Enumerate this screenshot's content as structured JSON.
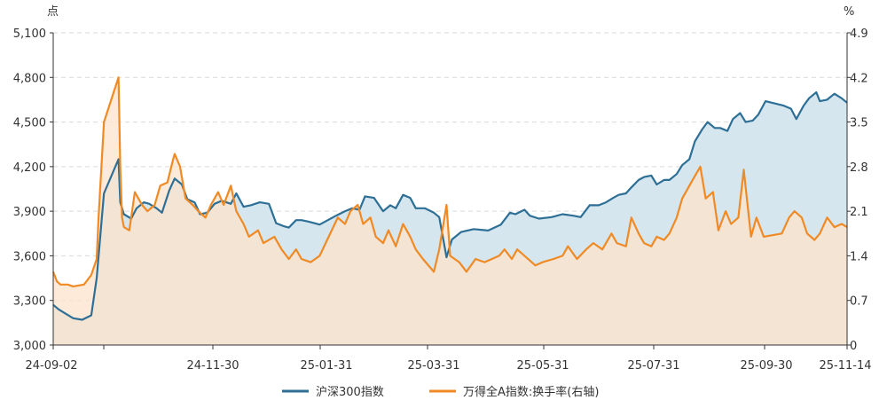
{
  "chart_data": {
    "type": "line",
    "left_axis": {
      "unit": "点",
      "ylim": [
        3000,
        5100
      ],
      "ticks": [
        "3,000",
        "3,300",
        "3,600",
        "3,900",
        "4,200",
        "4,500",
        "4,800",
        "5,100"
      ]
    },
    "right_axis": {
      "unit": "%",
      "ylim": [
        0,
        4.9
      ],
      "ticks": [
        "0",
        "0.7",
        "1.4",
        "2.1",
        "2.8",
        "3.5",
        "4.2",
        "4.9"
      ]
    },
    "x_axis": {
      "range": [
        "2024-09-02",
        "2025-11-14"
      ],
      "tick_labels": [
        "24-09-02",
        "24-11-30",
        "25-01-31",
        "25-03-31",
        "25-05-31",
        "25-07-31",
        "25-09-30",
        "25-11-14"
      ]
    },
    "grid": true,
    "legend_position": "bottom",
    "series": [
      {
        "name": "沪深300指数",
        "axis": "left",
        "color": "#2e6f96",
        "fill": "#d6e6ef",
        "points": [
          [
            "2024-09-02",
            3270
          ],
          [
            "2024-09-05",
            3240
          ],
          [
            "2024-09-09",
            3210
          ],
          [
            "2024-09-13",
            3180
          ],
          [
            "2024-09-18",
            3170
          ],
          [
            "2024-09-23",
            3200
          ],
          [
            "2024-09-26",
            3450
          ],
          [
            "2024-09-30",
            4020
          ],
          [
            "2024-10-08",
            4250
          ],
          [
            "2024-10-09",
            3960
          ],
          [
            "2024-10-11",
            3880
          ],
          [
            "2024-10-15",
            3850
          ],
          [
            "2024-10-18",
            3920
          ],
          [
            "2024-10-22",
            3960
          ],
          [
            "2024-10-25",
            3950
          ],
          [
            "2024-10-29",
            3920
          ],
          [
            "2024-11-01",
            3890
          ],
          [
            "2024-11-05",
            4040
          ],
          [
            "2024-11-08",
            4120
          ],
          [
            "2024-11-12",
            4080
          ],
          [
            "2024-11-15",
            3980
          ],
          [
            "2024-11-19",
            3960
          ],
          [
            "2024-11-22",
            3880
          ],
          [
            "2024-11-26",
            3890
          ],
          [
            "2024-11-30",
            3950
          ],
          [
            "2024-12-04",
            3970
          ],
          [
            "2024-12-09",
            3950
          ],
          [
            "2024-12-12",
            4020
          ],
          [
            "2024-12-16",
            3930
          ],
          [
            "2024-12-20",
            3940
          ],
          [
            "2024-12-25",
            3960
          ],
          [
            "2024-12-30",
            3950
          ],
          [
            "2025-01-03",
            3820
          ],
          [
            "2025-01-07",
            3800
          ],
          [
            "2025-01-10",
            3790
          ],
          [
            "2025-01-14",
            3840
          ],
          [
            "2025-01-17",
            3840
          ],
          [
            "2025-01-21",
            3830
          ],
          [
            "2025-01-27",
            3810
          ],
          [
            "2025-02-05",
            3870
          ],
          [
            "2025-02-10",
            3900
          ],
          [
            "2025-02-14",
            3920
          ],
          [
            "2025-02-18",
            3910
          ],
          [
            "2025-02-21",
            4000
          ],
          [
            "2025-02-26",
            3990
          ],
          [
            "2025-03-03",
            3900
          ],
          [
            "2025-03-07",
            3940
          ],
          [
            "2025-03-10",
            3920
          ],
          [
            "2025-03-14",
            4010
          ],
          [
            "2025-03-18",
            3990
          ],
          [
            "2025-03-21",
            3920
          ],
          [
            "2025-03-26",
            3920
          ],
          [
            "2025-03-31",
            3890
          ],
          [
            "2025-04-03",
            3860
          ],
          [
            "2025-04-07",
            3590
          ],
          [
            "2025-04-10",
            3710
          ],
          [
            "2025-04-15",
            3760
          ],
          [
            "2025-04-22",
            3780
          ],
          [
            "2025-04-30",
            3770
          ],
          [
            "2025-05-07",
            3810
          ],
          [
            "2025-05-12",
            3890
          ],
          [
            "2025-05-15",
            3880
          ],
          [
            "2025-05-20",
            3910
          ],
          [
            "2025-05-23",
            3870
          ],
          [
            "2025-05-28",
            3850
          ],
          [
            "2025-06-04",
            3860
          ],
          [
            "2025-06-10",
            3880
          ],
          [
            "2025-06-16",
            3870
          ],
          [
            "2025-06-20",
            3860
          ],
          [
            "2025-06-25",
            3940
          ],
          [
            "2025-06-30",
            3940
          ],
          [
            "2025-07-04",
            3960
          ],
          [
            "2025-07-08",
            3990
          ],
          [
            "2025-07-11",
            4010
          ],
          [
            "2025-07-15",
            4020
          ],
          [
            "2025-07-18",
            4060
          ],
          [
            "2025-07-22",
            4110
          ],
          [
            "2025-07-25",
            4130
          ],
          [
            "2025-07-29",
            4140
          ],
          [
            "2025-08-01",
            4080
          ],
          [
            "2025-08-05",
            4110
          ],
          [
            "2025-08-08",
            4110
          ],
          [
            "2025-08-12",
            4150
          ],
          [
            "2025-08-15",
            4210
          ],
          [
            "2025-08-19",
            4250
          ],
          [
            "2025-08-22",
            4370
          ],
          [
            "2025-08-26",
            4450
          ],
          [
            "2025-08-29",
            4500
          ],
          [
            "2025-09-02",
            4460
          ],
          [
            "2025-09-05",
            4460
          ],
          [
            "2025-09-09",
            4440
          ],
          [
            "2025-09-12",
            4520
          ],
          [
            "2025-09-16",
            4560
          ],
          [
            "2025-09-19",
            4500
          ],
          [
            "2025-09-23",
            4510
          ],
          [
            "2025-09-26",
            4550
          ],
          [
            "2025-09-30",
            4640
          ],
          [
            "2025-10-10",
            4610
          ],
          [
            "2025-10-14",
            4590
          ],
          [
            "2025-10-17",
            4520
          ],
          [
            "2025-10-21",
            4610
          ],
          [
            "2025-10-24",
            4660
          ],
          [
            "2025-10-28",
            4700
          ],
          [
            "2025-10-30",
            4640
          ],
          [
            "2025-11-03",
            4650
          ],
          [
            "2025-11-07",
            4690
          ],
          [
            "2025-11-11",
            4660
          ],
          [
            "2025-11-14",
            4630
          ]
        ]
      },
      {
        "name": "万得全A指数:换手率(右轴)",
        "axis": "right",
        "color": "#f08a24",
        "fill": "#fde3cb",
        "points": [
          [
            "2024-09-02",
            1.15
          ],
          [
            "2024-09-04",
            1.0
          ],
          [
            "2024-09-06",
            0.95
          ],
          [
            "2024-09-10",
            0.95
          ],
          [
            "2024-09-13",
            0.92
          ],
          [
            "2024-09-19",
            0.95
          ],
          [
            "2024-09-23",
            1.1
          ],
          [
            "2024-09-26",
            1.35
          ],
          [
            "2024-09-27",
            2.0
          ],
          [
            "2024-09-30",
            3.5
          ],
          [
            "2024-10-08",
            4.2
          ],
          [
            "2024-10-09",
            2.8
          ],
          [
            "2024-10-10",
            2.0
          ],
          [
            "2024-10-11",
            1.85
          ],
          [
            "2024-10-14",
            1.8
          ],
          [
            "2024-10-17",
            2.4
          ],
          [
            "2024-10-21",
            2.2
          ],
          [
            "2024-10-24",
            2.1
          ],
          [
            "2024-10-28",
            2.2
          ],
          [
            "2024-10-31",
            2.5
          ],
          [
            "2024-11-04",
            2.55
          ],
          [
            "2024-11-07",
            2.9
          ],
          [
            "2024-11-08",
            3.0
          ],
          [
            "2024-11-11",
            2.8
          ],
          [
            "2024-11-14",
            2.3
          ],
          [
            "2024-11-18",
            2.2
          ],
          [
            "2024-11-21",
            2.1
          ],
          [
            "2024-11-25",
            2.0
          ],
          [
            "2024-11-28",
            2.2
          ],
          [
            "2024-12-02",
            2.4
          ],
          [
            "2024-12-05",
            2.2
          ],
          [
            "2024-12-09",
            2.5
          ],
          [
            "2024-12-12",
            2.1
          ],
          [
            "2024-12-16",
            1.9
          ],
          [
            "2024-12-19",
            1.7
          ],
          [
            "2024-12-24",
            1.8
          ],
          [
            "2024-12-27",
            1.6
          ],
          [
            "2025-01-02",
            1.7
          ],
          [
            "2025-01-06",
            1.5
          ],
          [
            "2025-01-10",
            1.35
          ],
          [
            "2025-01-14",
            1.5
          ],
          [
            "2025-01-17",
            1.35
          ],
          [
            "2025-01-22",
            1.3
          ],
          [
            "2025-01-27",
            1.4
          ],
          [
            "2025-02-06",
            2.0
          ],
          [
            "2025-02-10",
            1.9
          ],
          [
            "2025-02-13",
            2.1
          ],
          [
            "2025-02-17",
            2.2
          ],
          [
            "2025-02-20",
            1.9
          ],
          [
            "2025-02-24",
            2.0
          ],
          [
            "2025-02-27",
            1.7
          ],
          [
            "2025-03-03",
            1.6
          ],
          [
            "2025-03-06",
            1.8
          ],
          [
            "2025-03-10",
            1.55
          ],
          [
            "2025-03-14",
            1.9
          ],
          [
            "2025-03-18",
            1.7
          ],
          [
            "2025-03-21",
            1.5
          ],
          [
            "2025-03-25",
            1.35
          ],
          [
            "2025-03-31",
            1.15
          ],
          [
            "2025-04-03",
            1.5
          ],
          [
            "2025-04-07",
            2.2
          ],
          [
            "2025-04-09",
            1.4
          ],
          [
            "2025-04-14",
            1.3
          ],
          [
            "2025-04-18",
            1.15
          ],
          [
            "2025-04-23",
            1.35
          ],
          [
            "2025-04-28",
            1.3
          ],
          [
            "2025-05-06",
            1.4
          ],
          [
            "2025-05-09",
            1.5
          ],
          [
            "2025-05-13",
            1.35
          ],
          [
            "2025-05-16",
            1.5
          ],
          [
            "2025-05-20",
            1.4
          ],
          [
            "2025-05-26",
            1.25
          ],
          [
            "2025-05-30",
            1.3
          ],
          [
            "2025-06-05",
            1.35
          ],
          [
            "2025-06-10",
            1.4
          ],
          [
            "2025-06-13",
            1.55
          ],
          [
            "2025-06-18",
            1.35
          ],
          [
            "2025-06-23",
            1.5
          ],
          [
            "2025-06-27",
            1.6
          ],
          [
            "2025-07-02",
            1.5
          ],
          [
            "2025-07-07",
            1.75
          ],
          [
            "2025-07-10",
            1.6
          ],
          [
            "2025-07-15",
            1.55
          ],
          [
            "2025-07-18",
            2.0
          ],
          [
            "2025-07-22",
            1.75
          ],
          [
            "2025-07-25",
            1.6
          ],
          [
            "2025-07-29",
            1.55
          ],
          [
            "2025-08-01",
            1.7
          ],
          [
            "2025-08-05",
            1.65
          ],
          [
            "2025-08-08",
            1.75
          ],
          [
            "2025-08-12",
            2.0
          ],
          [
            "2025-08-15",
            2.3
          ],
          [
            "2025-08-19",
            2.5
          ],
          [
            "2025-08-21",
            2.6
          ],
          [
            "2025-08-25",
            2.8
          ],
          [
            "2025-08-28",
            2.3
          ],
          [
            "2025-09-01",
            2.4
          ],
          [
            "2025-09-04",
            1.8
          ],
          [
            "2025-09-08",
            2.1
          ],
          [
            "2025-09-11",
            1.9
          ],
          [
            "2025-09-15",
            2.0
          ],
          [
            "2025-09-18",
            2.75
          ],
          [
            "2025-09-22",
            1.7
          ],
          [
            "2025-09-25",
            2.0
          ],
          [
            "2025-09-29",
            1.7
          ],
          [
            "2025-10-09",
            1.75
          ],
          [
            "2025-10-13",
            2.0
          ],
          [
            "2025-10-16",
            2.1
          ],
          [
            "2025-10-20",
            2.0
          ],
          [
            "2025-10-23",
            1.75
          ],
          [
            "2025-10-27",
            1.65
          ],
          [
            "2025-10-30",
            1.75
          ],
          [
            "2025-11-03",
            2.0
          ],
          [
            "2025-11-07",
            1.85
          ],
          [
            "2025-11-11",
            1.9
          ],
          [
            "2025-11-14",
            1.85
          ]
        ]
      }
    ]
  }
}
